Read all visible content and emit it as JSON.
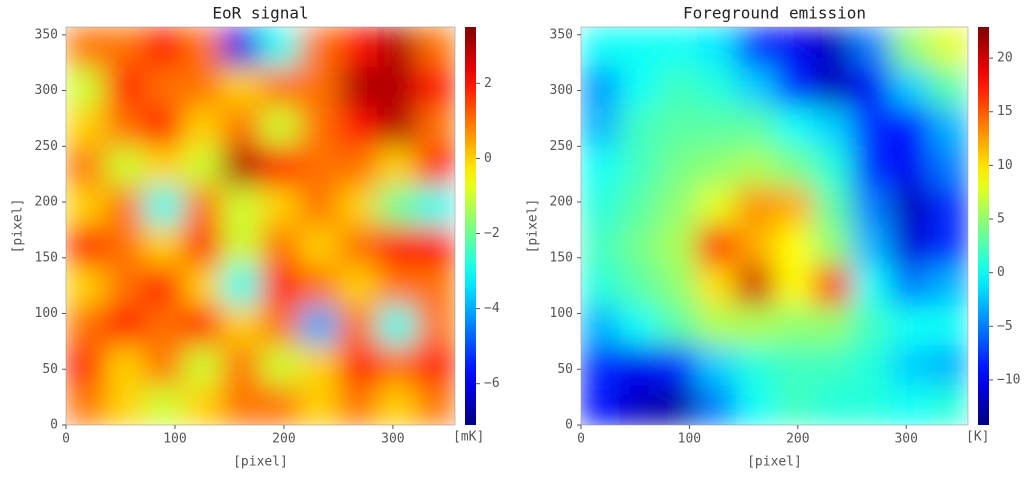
{
  "chart_data": [
    {
      "type": "heatmap",
      "title": "EoR signal",
      "xlabel": "[pixel]",
      "ylabel": "[pixel]",
      "xlim": [
        0,
        357
      ],
      "ylim": [
        0,
        357
      ],
      "xticks": [
        0,
        100,
        200,
        300
      ],
      "yticks": [
        0,
        50,
        100,
        150,
        200,
        250,
        300,
        350
      ],
      "cmap": "jet",
      "clim": [
        -7.1,
        3.5
      ],
      "colorbar_label": "[mK]",
      "cticks": [
        {
          "value": -6,
          "label": "−6"
        },
        {
          "value": -4,
          "label": "−4"
        },
        {
          "value": -2,
          "label": "−2"
        },
        0,
        2
      ],
      "z": [
        [
          1,
          1,
          2,
          1,
          -6,
          -3,
          1,
          2,
          3,
          1
        ],
        [
          -1,
          2,
          1,
          1,
          0,
          1,
          1,
          3,
          3,
          2
        ],
        [
          0,
          1,
          2,
          0,
          1,
          -1,
          1,
          2,
          3,
          1
        ],
        [
          1,
          -1,
          0,
          -1,
          3,
          2,
          1,
          1,
          0,
          2
        ],
        [
          0,
          1,
          -3,
          1,
          -1,
          0,
          1,
          0,
          -2,
          -3
        ],
        [
          2,
          1,
          0,
          2,
          -1,
          1,
          0,
          1,
          2,
          2
        ],
        [
          0,
          1,
          2,
          0,
          -3,
          2,
          1,
          0,
          1,
          1
        ],
        [
          1,
          2,
          1,
          2,
          0,
          1,
          -4,
          1,
          -3,
          1
        ],
        [
          2,
          0,
          1,
          -1,
          1,
          -1,
          0,
          2,
          1,
          2
        ],
        [
          1,
          0,
          -1,
          0,
          1,
          1,
          0,
          1,
          0,
          1
        ]
      ]
    },
    {
      "type": "heatmap",
      "title": "Foreground emission",
      "xlabel": "[pixel]",
      "ylabel": "[pixel]",
      "xlim": [
        0,
        357
      ],
      "ylim": [
        0,
        357
      ],
      "xticks": [
        0,
        100,
        200,
        300
      ],
      "yticks": [
        0,
        50,
        100,
        150,
        200,
        250,
        300,
        350
      ],
      "cmap": "jet",
      "clim": [
        -14.2,
        22.9
      ],
      "colorbar_label": "[K]",
      "cticks": [
        {
          "value": -10,
          "label": "−10"
        },
        {
          "value": -5,
          "label": "−5"
        },
        0,
        5,
        10,
        15,
        20
      ],
      "z": [
        [
          0,
          0,
          0,
          -1,
          -8,
          -10,
          -12,
          -5,
          5,
          8
        ],
        [
          -4,
          0,
          2,
          1,
          -2,
          -8,
          -12,
          -10,
          -2,
          3
        ],
        [
          -3,
          2,
          3,
          3,
          3,
          0,
          -2,
          -8,
          -9,
          -3
        ],
        [
          0,
          2,
          4,
          5,
          6,
          4,
          1,
          -8,
          -10,
          -5
        ],
        [
          1,
          3,
          5,
          8,
          13,
          12,
          3,
          -5,
          -12,
          -8
        ],
        [
          2,
          4,
          6,
          18,
          12,
          9,
          5,
          -3,
          -11,
          -8
        ],
        [
          1,
          3,
          5,
          10,
          20,
          9,
          17,
          0,
          -5,
          -3
        ],
        [
          -3,
          0,
          3,
          6,
          6,
          5,
          5,
          2,
          0,
          0
        ],
        [
          -8,
          -10,
          -8,
          -2,
          1,
          2,
          2,
          1,
          -2,
          -3
        ],
        [
          -9,
          -12,
          -13,
          -5,
          0,
          2,
          1,
          1,
          0,
          1
        ]
      ]
    }
  ]
}
